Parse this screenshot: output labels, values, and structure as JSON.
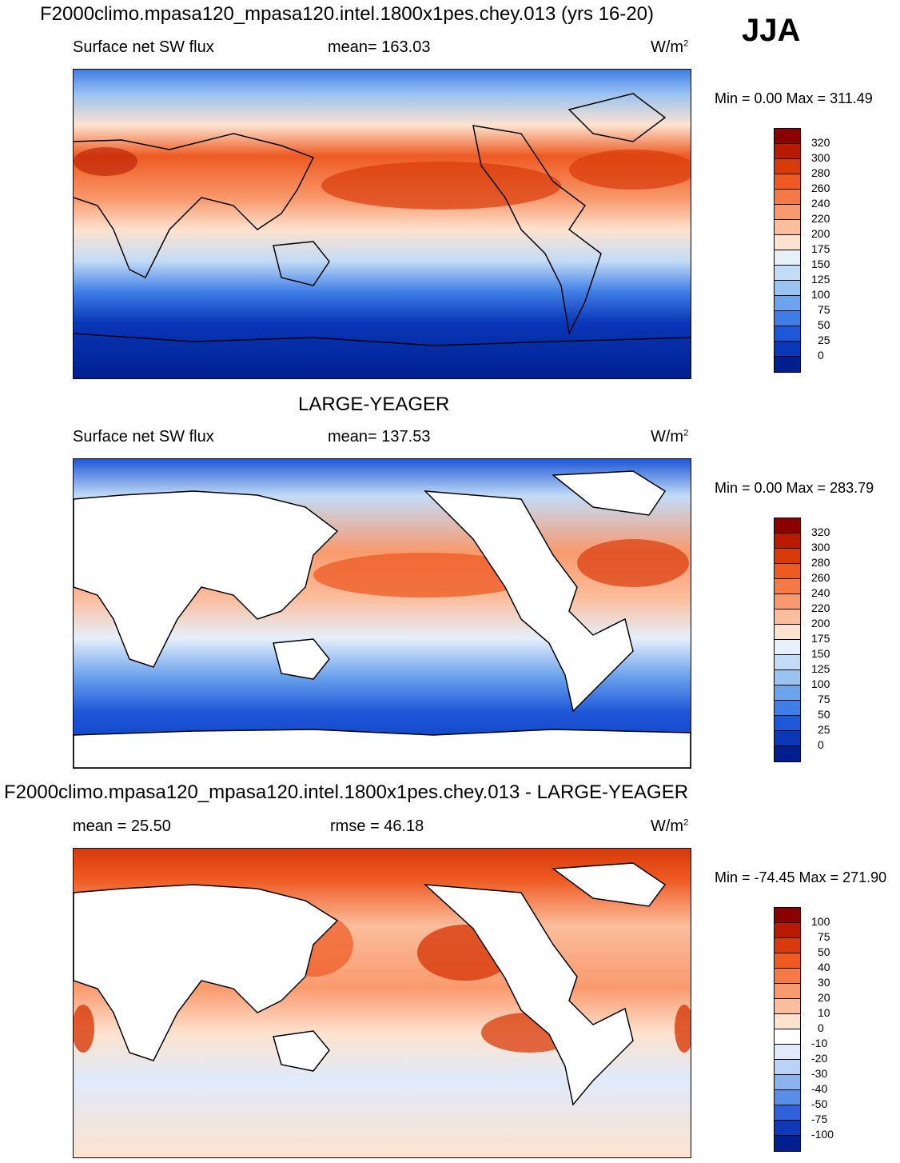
{
  "header": {
    "title": "F2000climo.mpasa120_mpasa120.intel.1800x1pes.chey.013 (yrs 16-20)",
    "season": "JJA"
  },
  "panels": [
    {
      "id": "model",
      "center_title": "",
      "left_label": "Surface net SW flux",
      "center_label": "mean= 163.03",
      "units_base": "W/m",
      "units_exp": "2",
      "minmax": "Min =    0.00 Max = 311.49",
      "colorbar_labels": [
        "320",
        "300",
        "280",
        "260",
        "240",
        "220",
        "200",
        "175",
        "150",
        "125",
        "100",
        "75",
        "50",
        "25",
        "0"
      ],
      "colorbar_colors": [
        "#8b0000",
        "#b81a00",
        "#d83a0a",
        "#ee5a22",
        "#f67a46",
        "#f99a6e",
        "#fbbd9c",
        "#fde3cf",
        "#e5f0fb",
        "#c3dcf7",
        "#9bc3f2",
        "#6ea4ec",
        "#3f7ee6",
        "#1e57d8",
        "#0a36b8",
        "#001f8e"
      ]
    },
    {
      "id": "obs",
      "center_title": "LARGE-YEAGER",
      "left_label": "Surface net SW flux",
      "center_label": "mean= 137.53",
      "units_base": "W/m",
      "units_exp": "2",
      "minmax": "Min =    0.00 Max = 283.79",
      "colorbar_labels": [
        "320",
        "300",
        "280",
        "260",
        "240",
        "220",
        "200",
        "175",
        "150",
        "125",
        "100",
        "75",
        "50",
        "25",
        "0"
      ],
      "colorbar_colors": [
        "#8b0000",
        "#b81a00",
        "#d83a0a",
        "#ee5a22",
        "#f67a46",
        "#f99a6e",
        "#fbbd9c",
        "#fde3cf",
        "#e5f0fb",
        "#c3dcf7",
        "#9bc3f2",
        "#6ea4ec",
        "#3f7ee6",
        "#1e57d8",
        "#0a36b8",
        "#001f8e"
      ]
    },
    {
      "id": "diff",
      "center_title": "F2000climo.mpasa120_mpasa120.intel.1800x1pes.chey.013 - LARGE-YEAGER",
      "left_label": "mean =  25.50",
      "center_label": "rmse =  46.18",
      "units_base": "W/m",
      "units_exp": "2",
      "minmax": "Min = -74.45 Max = 271.90",
      "colorbar_labels": [
        "100",
        "75",
        "50",
        "40",
        "30",
        "20",
        "10",
        "0",
        "-10",
        "-20",
        "-30",
        "-40",
        "-50",
        "-75",
        "-100"
      ],
      "colorbar_colors": [
        "#8b0000",
        "#b81a00",
        "#d83a0a",
        "#ee5a22",
        "#f67a46",
        "#f99a6e",
        "#fbbd9c",
        "#fde3cf",
        "#ffffff",
        "#dfeafb",
        "#b9d2f5",
        "#8cb3ee",
        "#5a8de6",
        "#2f62d8",
        "#0e38b8",
        "#001f8e"
      ]
    }
  ],
  "map_colors": {
    "ocean_hi": "#d8441a",
    "ocean_mid": "#f6a882",
    "ocean_lo": "#c9dcf6",
    "polar": "#0a2fa6",
    "land": "#ffffff",
    "coast": "#000000"
  }
}
